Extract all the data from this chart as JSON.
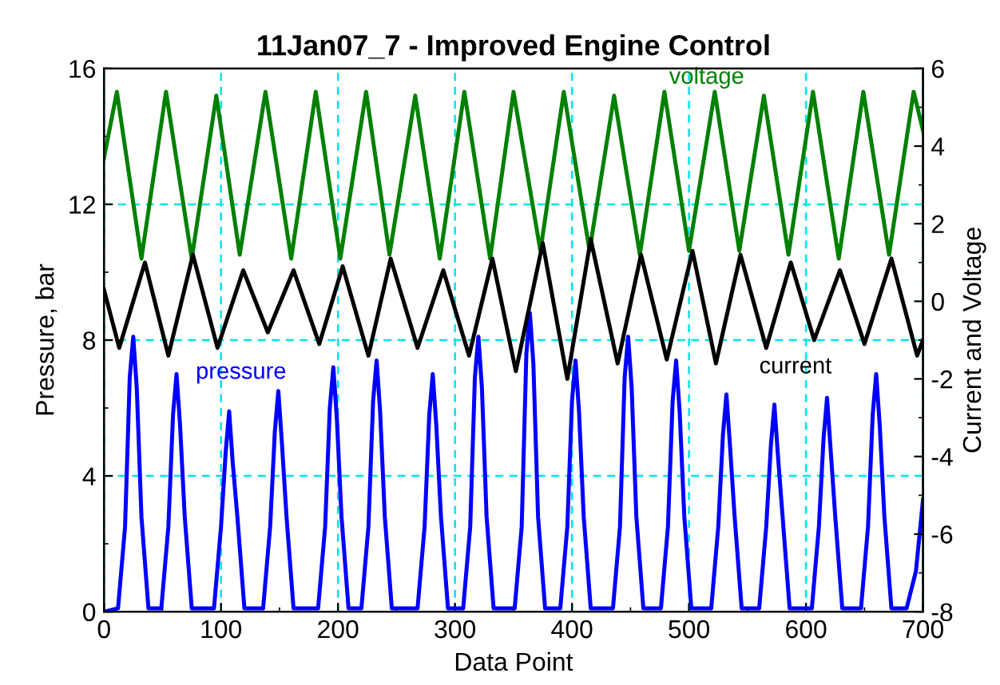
{
  "chart_data": {
    "type": "line",
    "title": "11Jan07_7 - Improved Engine Control",
    "xlabel": "Data Point",
    "ylabel": "Pressure, bar",
    "y2label": "Current and Voltage",
    "xlim": [
      0,
      700
    ],
    "xticks": [
      0,
      100,
      200,
      300,
      400,
      500,
      600,
      700
    ],
    "ylim": [
      0,
      16
    ],
    "yticks": [
      0,
      4,
      8,
      12,
      16
    ],
    "y2lim": [
      -8,
      6
    ],
    "y2ticks": [
      -8,
      -6,
      -4,
      -2,
      0,
      2,
      4,
      6
    ],
    "grid": true,
    "legend": false,
    "marker": "none",
    "line_style": "solid",
    "series": [
      {
        "name": "voltage",
        "color": "#008000",
        "axis": "y2",
        "x": [
          0,
          11,
          32,
          53,
          75,
          96,
          116,
          138,
          160,
          181,
          202,
          224,
          244,
          266,
          287,
          308,
          330,
          350,
          373,
          393,
          415,
          436,
          458,
          479,
          500,
          522,
          543,
          564,
          585,
          606,
          628,
          649,
          671,
          692,
          700
        ],
        "values": [
          3.7,
          5.4,
          1.1,
          5.4,
          1.1,
          5.3,
          1.2,
          5.4,
          1.1,
          5.4,
          1.1,
          5.4,
          1.2,
          5.3,
          1.1,
          5.4,
          1.1,
          5.4,
          1.3,
          5.4,
          1.3,
          5.3,
          1.2,
          5.4,
          1.3,
          5.4,
          1.3,
          5.3,
          1.2,
          5.4,
          1.1,
          5.4,
          1.2,
          5.4,
          4.4
        ]
      },
      {
        "name": "current",
        "color": "#000000",
        "axis": "y2",
        "x": [
          0,
          13,
          35,
          55,
          76,
          97,
          119,
          140,
          162,
          184,
          204,
          226,
          245,
          268,
          290,
          312,
          332,
          352,
          375,
          396,
          416,
          439,
          459,
          481,
          503,
          523,
          544,
          566,
          587,
          607,
          629,
          650,
          673,
          695,
          700
        ],
        "values": [
          0.3,
          -1.2,
          1.0,
          -1.4,
          1.2,
          -1.2,
          0.8,
          -0.8,
          0.8,
          -1.1,
          0.9,
          -1.4,
          1.1,
          -1.2,
          0.8,
          -1.4,
          1.1,
          -1.8,
          1.5,
          -2.0,
          1.6,
          -1.6,
          1.2,
          -1.5,
          1.3,
          -1.6,
          1.2,
          -1.2,
          1.0,
          -1.0,
          0.8,
          -1.1,
          1.1,
          -1.4,
          -1.0
        ]
      },
      {
        "name": "pressure",
        "color": "#0000ff",
        "x": [
          0,
          12,
          18,
          22,
          25,
          28,
          32,
          38,
          49,
          55,
          59,
          62,
          65,
          69,
          75,
          94,
          100,
          104,
          107,
          110,
          114,
          120,
          136,
          142,
          146,
          149,
          152,
          156,
          162,
          183,
          189,
          193,
          196,
          199,
          203,
          209,
          220,
          226,
          230,
          233,
          236,
          240,
          246,
          268,
          274,
          278,
          281,
          284,
          288,
          294,
          307,
          313,
          317,
          320,
          323,
          327,
          333,
          351,
          357,
          361,
          364,
          367,
          371,
          377,
          390,
          396,
          400,
          403,
          406,
          410,
          416,
          435,
          441,
          445,
          448,
          451,
          455,
          461,
          476,
          482,
          486,
          489,
          492,
          496,
          502,
          519,
          525,
          529,
          532,
          535,
          539,
          545,
          560,
          566,
          570,
          573,
          576,
          580,
          586,
          605,
          611,
          615,
          618,
          621,
          625,
          631,
          647,
          653,
          657,
          660,
          663,
          667,
          673,
          686,
          694,
          700
        ],
        "values": [
          0.0,
          0.1,
          2.5,
          6.9,
          8.1,
          6.6,
          2.8,
          0.1,
          0.1,
          2.5,
          5.8,
          7.0,
          5.5,
          2.8,
          0.1,
          0.1,
          2.5,
          4.7,
          5.9,
          4.4,
          2.8,
          0.1,
          0.1,
          2.5,
          5.3,
          6.5,
          5.0,
          2.8,
          0.1,
          0.1,
          2.5,
          6.0,
          7.2,
          5.7,
          2.8,
          0.1,
          0.1,
          2.5,
          6.2,
          7.4,
          5.9,
          2.8,
          0.1,
          0.1,
          2.5,
          5.8,
          7.0,
          5.5,
          2.8,
          0.1,
          0.1,
          2.5,
          6.9,
          8.1,
          6.6,
          2.8,
          0.1,
          0.1,
          2.5,
          7.6,
          8.8,
          7.3,
          2.8,
          0.1,
          0.1,
          2.5,
          6.2,
          7.4,
          5.9,
          2.8,
          0.1,
          0.1,
          2.5,
          6.9,
          8.1,
          6.6,
          2.8,
          0.1,
          0.1,
          2.5,
          6.2,
          7.4,
          5.9,
          2.8,
          0.1,
          0.1,
          2.5,
          5.2,
          6.4,
          4.9,
          2.8,
          0.1,
          0.1,
          2.5,
          4.9,
          6.1,
          4.6,
          2.8,
          0.1,
          0.1,
          2.5,
          5.1,
          6.3,
          4.8,
          2.8,
          0.1,
          0.1,
          2.5,
          5.8,
          7.0,
          5.5,
          2.8,
          0.1,
          0.1,
          1.2,
          3.3
        ]
      }
    ]
  }
}
